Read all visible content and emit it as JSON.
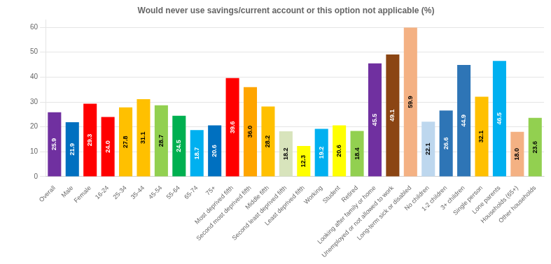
{
  "chart_data": {
    "type": "bar",
    "title": "Would never use savings/current account or this option not applicable (%)",
    "categories": [
      "Overall",
      "Male",
      "Female",
      "16-24",
      "25-34",
      "35-44",
      "45-54",
      "55-64",
      "65-74",
      "75+",
      "Most deprived fifth",
      "Second most deprived fifth",
      "Middle fifth",
      "Second least deprived fifth",
      "Least deprived fifth",
      "Working",
      "Student",
      "Retired",
      "Looking after family or home",
      "Unemployed or not allowed to work",
      "Long-term sick or disabled",
      "No children",
      "1-2 children",
      "3+ children",
      "Single person",
      "Lone parents",
      "Households (65+)",
      "Other households"
    ],
    "values": [
      25.9,
      21.9,
      29.3,
      24.0,
      27.8,
      31.1,
      28.7,
      24.5,
      18.7,
      20.6,
      39.6,
      36.0,
      28.2,
      18.2,
      12.3,
      19.2,
      20.6,
      18.4,
      45.5,
      49.1,
      59.9,
      22.1,
      26.6,
      44.9,
      32.1,
      46.5,
      18.0,
      23.6
    ],
    "value_labels": [
      "25.9",
      "21.9",
      "29.3",
      "24.0",
      "27.8",
      "31.1",
      "28.7",
      "24.5",
      "18.7",
      "20.6",
      "39.6",
      "36.0",
      "28.2",
      "18.2",
      "12.3",
      "19.2",
      "20.6",
      "18.4",
      "45.5",
      "49.1",
      "59.9",
      "22.1",
      "26.6",
      "44.9",
      "32.1",
      "46.5",
      "18.0",
      "23.6"
    ],
    "colors": [
      "#7030a0",
      "#0070c0",
      "#ff0000",
      "#ff0000",
      "#ffc000",
      "#ffc000",
      "#92d050",
      "#00b050",
      "#00b0f0",
      "#0070c0",
      "#ff0000",
      "#ffa500",
      "#ffc000",
      "#d8e4bc",
      "#ffff00",
      "#00b0f0",
      "#ffff00",
      "#92d050",
      "#7030a0",
      "#8b4513",
      "#f4b183",
      "#bdd7ee",
      "#2e75b6",
      "#2e75b6",
      "#ffc000",
      "#00b0f0",
      "#f4b183",
      "#92d050"
    ],
    "ylim": [
      0,
      63
    ],
    "yticks": [
      0,
      10,
      20,
      30,
      40,
      50,
      60
    ],
    "grid": true,
    "data_labels": true
  }
}
